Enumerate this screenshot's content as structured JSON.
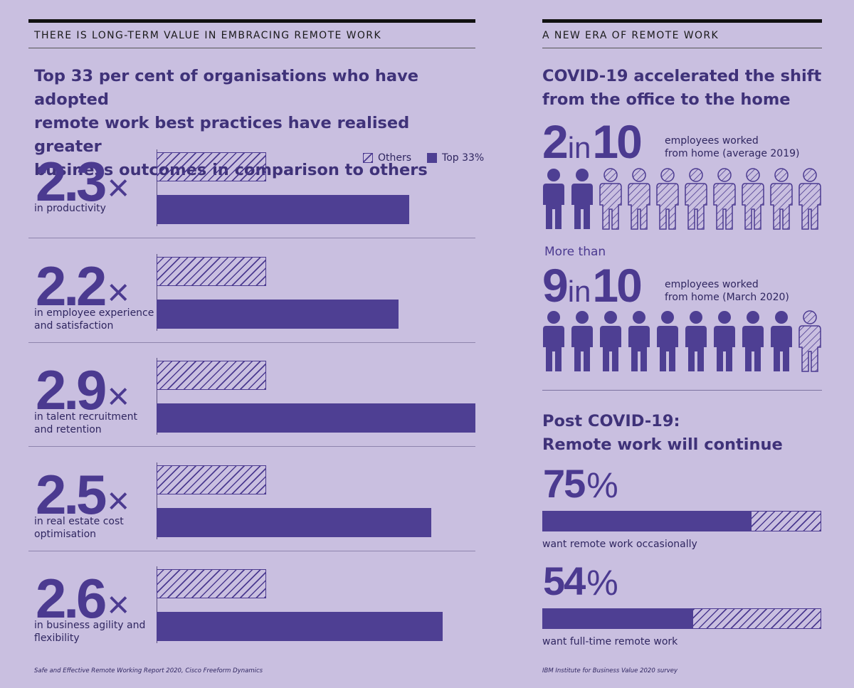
{
  "left": {
    "section_title": "THERE IS LONG-TERM VALUE IN EMBRACING REMOTE WORK",
    "headline_pre": "Top ",
    "headline_bold": "33 per cent",
    "headline_line1_rest": " of organisations who have adopted",
    "headline_line2": "remote work best practices have realised greater",
    "headline_line3": "business outcomes in comparison to others",
    "source": "Safe and Effective Remote Working Report 2020, Cisco Freeform Dynamics"
  },
  "right": {
    "section_title": "A NEW ERA OF REMOTE WORK",
    "headline_line1": "COVID-19 accelerated the shift",
    "headline_line2": "from the office to the home",
    "stat1": {
      "num": "2",
      "in": "in",
      "den": "10",
      "caption1": "employees worked",
      "caption2": "from home (average 2019)",
      "filled": 2,
      "total": 10
    },
    "more_than": "More than",
    "stat2": {
      "num": "9",
      "in": "in",
      "den": "10",
      "caption1": "employees worked",
      "caption2": "from home (March 2020)",
      "filled": 9,
      "total": 10
    },
    "post_line1": "Post COVID-19:",
    "post_line2": "Remote work will continue",
    "source": "IBM Institute for Business Value 2020 survey"
  },
  "chart_data": [
    {
      "type": "bar",
      "categories": [
        "in productivity",
        "in employee experience and satisfaction",
        "in talent recruitment and retention",
        "in real estate cost optimisation",
        "in business agility and flexibility"
      ],
      "category_lines": [
        [
          "in productivity"
        ],
        [
          "in employee experience",
          "and satisfaction"
        ],
        [
          "in talent recruitment",
          "and retention"
        ],
        [
          "in real estate cost",
          "optimisation"
        ],
        [
          "in business agility and",
          "flexibility"
        ]
      ],
      "multipliers": [
        "2.3",
        "2.2",
        "2.9",
        "2.5",
        "2.6"
      ],
      "multiplier_symbol": "×",
      "series": [
        {
          "name": "Others",
          "values": [
            1,
            1,
            1,
            1,
            1
          ]
        },
        {
          "name": "Top 33%",
          "values": [
            2.3,
            2.2,
            2.9,
            2.5,
            2.6
          ]
        }
      ],
      "xlim": [
        0,
        2.9
      ],
      "legend_placement": "top-right",
      "colors": {
        "solid": "#4e3f93",
        "hatch": "#4b3a90"
      }
    },
    {
      "type": "bar",
      "orientation": "horizontal-stacked",
      "items": [
        {
          "value": 75,
          "label": "75",
          "unit": "%",
          "caption": "want remote work occasionally"
        },
        {
          "value": 54,
          "label": "54",
          "unit": "%",
          "caption": "want full-time remote work"
        }
      ],
      "xlim": [
        0,
        100
      ]
    }
  ]
}
